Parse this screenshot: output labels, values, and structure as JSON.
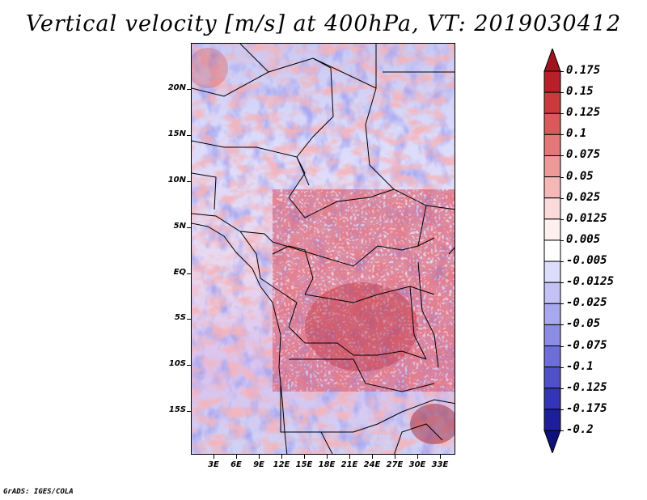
{
  "title": "Vertical velocity [m/s] at 400hPa, VT: 2019030412",
  "footer": "GrADS: IGES/COLA",
  "y_axis": {
    "labels": [
      "20N",
      "15N",
      "10N",
      "5N",
      "EQ",
      "5S",
      "10S",
      "15S"
    ],
    "values": [
      20,
      15,
      10,
      5,
      0,
      -5,
      -10,
      -15
    ],
    "range": [
      -20,
      25
    ]
  },
  "x_axis": {
    "labels": [
      "3E",
      "6E",
      "9E",
      "12E",
      "15E",
      "18E",
      "21E",
      "24E",
      "27E",
      "30E",
      "33E"
    ],
    "values": [
      3,
      6,
      9,
      12,
      15,
      18,
      21,
      24,
      27,
      30,
      33
    ],
    "range": [
      0,
      35
    ]
  },
  "colorbar": {
    "labels": [
      "0.175",
      "0.15",
      "0.125",
      "0.1",
      "0.075",
      "0.05",
      "0.025",
      "0.0125",
      "0.005",
      "-0.005",
      "-0.0125",
      "-0.025",
      "-0.05",
      "-0.075",
      "-0.1",
      "-0.125",
      "-0.175",
      "-0.2"
    ],
    "colors": [
      "#a0141e",
      "#b8202a",
      "#c83a3c",
      "#d85a5a",
      "#e47878",
      "#ee9898",
      "#f5b8b8",
      "#fadada",
      "#fff0f0",
      "#ffffff",
      "#dcdcfb",
      "#c2c2f5",
      "#a8a8ee",
      "#8c8ce4",
      "#6e6ed8",
      "#5050c8",
      "#3434b4",
      "#1e1e9a",
      "#10107a"
    ]
  }
}
